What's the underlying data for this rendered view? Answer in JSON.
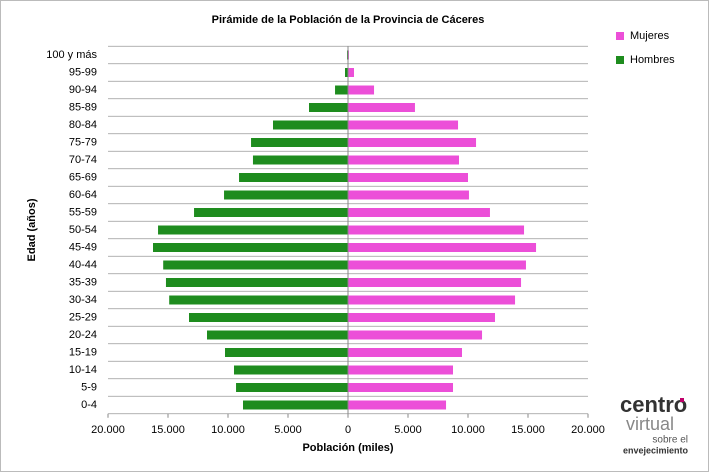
{
  "chart_data": {
    "type": "pyramid",
    "title": "Pirámide de la Población de la Provincia de Cáceres",
    "xlabel": "Población (miles)",
    "ylabel": "Edad (años)",
    "categories": [
      "0-4",
      "5-9",
      "10-14",
      "15-19",
      "20-24",
      "25-29",
      "30-34",
      "35-39",
      "40-44",
      "45-49",
      "50-54",
      "55-59",
      "60-64",
      "65-69",
      "70-74",
      "75-79",
      "80-84",
      "85-89",
      "90-94",
      "95-99",
      "100 y más"
    ],
    "series": [
      {
        "name": "Mujeres",
        "color": "#ec4fd8",
        "values": [
          8170,
          8750,
          8750,
          9500,
          11170,
          12250,
          13920,
          14420,
          14830,
          15670,
          14670,
          11830,
          10080,
          10000,
          9250,
          10670,
          9170,
          5580,
          2170,
          500,
          80
        ]
      },
      {
        "name": "Hombres",
        "color": "#1e8c1e",
        "values": [
          -8750,
          -9330,
          -9500,
          -10250,
          -11750,
          -13250,
          -14900,
          -15170,
          -15400,
          -16250,
          -15830,
          -12830,
          -10330,
          -9080,
          -7920,
          -8080,
          -6250,
          -3250,
          -1080,
          -250,
          -80
        ]
      }
    ],
    "xlim": [
      -20000,
      20000
    ],
    "xticks": [
      {
        "value": -20000,
        "label": "20.000"
      },
      {
        "value": -15000,
        "label": "15.000"
      },
      {
        "value": -10000,
        "label": "10.000"
      },
      {
        "value": -5000,
        "label": "5.000"
      },
      0,
      {
        "value": 5000,
        "label": "5.000"
      },
      {
        "value": 10000,
        "label": "10.000"
      },
      {
        "value": 15000,
        "label": "15.000"
      },
      {
        "value": 20000,
        "label": "20.000"
      }
    ],
    "legend": "top-right"
  },
  "logo": {
    "brand": "centro",
    "brand2": "virtual",
    "line1": "sobre el",
    "line2": "envejecimiento"
  }
}
